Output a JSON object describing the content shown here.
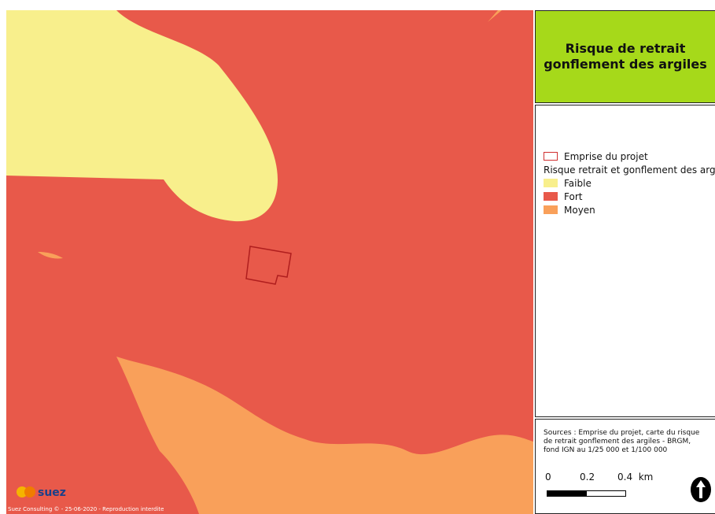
{
  "title": {
    "lines": [
      "Risque de retrait",
      "gonflement des argiles"
    ]
  },
  "legend": {
    "project": "Emprise du projet",
    "group": "Risque retrait et gonflement des argiles",
    "items": [
      "Faible",
      "Fort",
      "Moyen"
    ]
  },
  "sources": "Sources : Emprise du projet, carte du risque de retrait gonflement des argiles - BRGM, fond IGN au 1/25 000 et 1/100 000",
  "scale_bar": {
    "labels": [
      "0",
      "0.2",
      "0.4  km"
    ]
  },
  "logo": "suez",
  "copyright": "Suez Consulting © - 25-06-2020 - Reproduction interdite"
}
